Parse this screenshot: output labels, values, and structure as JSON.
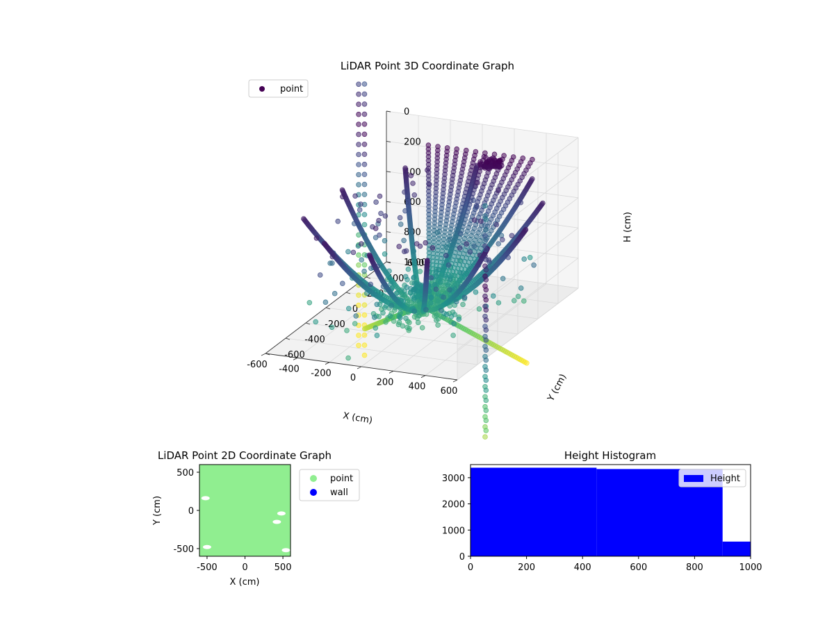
{
  "chart_data": [
    {
      "type": "scatter3d",
      "title": "LiDAR Point 3D Coordinate Graph",
      "xlabel": "X (cm)",
      "ylabel": "Y (cm)",
      "zlabel": "H (cm)",
      "xlim": [
        -600,
        600
      ],
      "ylim": [
        -600,
        600
      ],
      "zlim": [
        0,
        1000
      ],
      "z_inverted": true,
      "x_ticks": [
        "-600",
        "-400",
        "-200",
        "0",
        "200",
        "400",
        "600"
      ],
      "y_ticks": [
        "-600",
        "-400",
        "-200",
        "0",
        "200",
        "400",
        "600"
      ],
      "z_ticks": [
        "0",
        "200",
        "400",
        "600",
        "800",
        "1000"
      ],
      "grid": true,
      "legend": {
        "position": "top-left",
        "entries": [
          {
            "label": "point",
            "color": "#440154"
          }
        ]
      },
      "colormap": "viridis",
      "structure": {
        "arcs": [
          {
            "angle_deg": 0,
            "radius": 650
          },
          {
            "angle_deg": 30,
            "radius": 640
          },
          {
            "angle_deg": 60,
            "radius": 660
          },
          {
            "angle_deg": 95,
            "radius": 640
          },
          {
            "angle_deg": 130,
            "radius": 650
          },
          {
            "angle_deg": 165,
            "radius": 620
          },
          {
            "angle_deg": 200,
            "radius": 640
          },
          {
            "angle_deg": 235,
            "radius": 560
          },
          {
            "angle_deg": 270,
            "radius": 520
          },
          {
            "angle_deg": 305,
            "radius": 600
          },
          {
            "angle_deg": 335,
            "radius": 640
          }
        ],
        "fan_columns": {
          "count": 12,
          "y": 620,
          "x_range": [
            -350,
            300
          ]
        },
        "clusters": [
          {
            "x": 80,
            "y": 560,
            "z": 230
          }
        ],
        "tails": [
          {
            "angle_deg": 150,
            "radius": 650,
            "z_end": 1300
          },
          {
            "angle_deg": 40,
            "radius": 560,
            "z_end": 1400
          }
        ],
        "out_of_range_columns": {
          "count": 4,
          "z_range": [
            -300,
            1700
          ]
        }
      }
    },
    {
      "type": "scatter",
      "title": "LiDAR Point 2D Coordinate Graph",
      "xlabel": "X (cm)",
      "ylabel": "Y (cm)",
      "xlim": [
        -600,
        600
      ],
      "ylim": [
        -600,
        600
      ],
      "x_ticks": [
        "-500",
        "0",
        "500"
      ],
      "y_ticks": [
        "-500",
        "0",
        "500"
      ],
      "legend": {
        "position": "outside-right",
        "entries": [
          {
            "label": "point",
            "color": "#90ee90"
          },
          {
            "label": "wall",
            "color": "#0000ff"
          }
        ]
      },
      "fill_color": "#90ee90",
      "gaps": [
        {
          "x": -520,
          "y": 160
        },
        {
          "x": 420,
          "y": -150
        },
        {
          "x": 480,
          "y": -40
        },
        {
          "x": -500,
          "y": -480
        },
        {
          "x": 540,
          "y": -520
        }
      ]
    },
    {
      "type": "histogram",
      "title": "Height Histogram",
      "xlim": [
        0,
        1000
      ],
      "ylim": [
        0,
        3500
      ],
      "x_ticks": [
        "0",
        "200",
        "400",
        "600",
        "800",
        "1000"
      ],
      "y_ticks": [
        "0",
        "1000",
        "2000",
        "3000"
      ],
      "color": "#0000ff",
      "legend": {
        "position": "top-right",
        "entries": [
          {
            "label": "Height",
            "color": "#0000ff"
          }
        ]
      },
      "bins": [
        {
          "from": 0,
          "to": 450,
          "count": 3380
        },
        {
          "from": 450,
          "to": 900,
          "count": 3330
        },
        {
          "from": 900,
          "to": 1000,
          "count": 560
        }
      ]
    }
  ]
}
